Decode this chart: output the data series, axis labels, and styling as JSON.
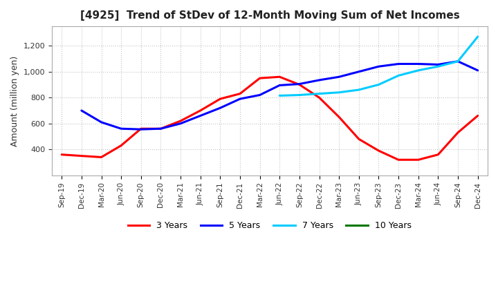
{
  "title": "[4925]  Trend of StDev of 12-Month Moving Sum of Net Incomes",
  "ylabel": "Amount (million yen)",
  "x_labels": [
    "Sep-19",
    "Dec-19",
    "Mar-20",
    "Jun-20",
    "Sep-20",
    "Dec-20",
    "Mar-21",
    "Jun-21",
    "Sep-21",
    "Dec-21",
    "Mar-22",
    "Jun-22",
    "Sep-22",
    "Dec-22",
    "Mar-23",
    "Jun-23",
    "Sep-23",
    "Dec-23",
    "Mar-24",
    "Jun-24",
    "Sep-24",
    "Dec-24"
  ],
  "series": {
    "3 Years": {
      "color": "#ff0000",
      "data_x": [
        0,
        1,
        2,
        3,
        4,
        5,
        6,
        7,
        8,
        9,
        10,
        11,
        12,
        13,
        14,
        15,
        16,
        17,
        18,
        19,
        20,
        21
      ],
      "data_y": [
        360,
        350,
        340,
        430,
        560,
        560,
        620,
        700,
        790,
        830,
        950,
        960,
        900,
        800,
        650,
        480,
        390,
        320,
        320,
        360,
        530,
        660
      ]
    },
    "5 Years": {
      "color": "#0000ff",
      "data_x": [
        1,
        2,
        3,
        4,
        5,
        6,
        7,
        8,
        9,
        10,
        11,
        12,
        13,
        14,
        15,
        16,
        17,
        18,
        19,
        20,
        21
      ],
      "data_y": [
        700,
        610,
        560,
        555,
        560,
        600,
        660,
        720,
        790,
        820,
        895,
        905,
        935,
        960,
        1000,
        1040,
        1060,
        1060,
        1055,
        1080,
        1010
      ]
    },
    "7 Years": {
      "color": "#00ccff",
      "data_x": [
        11,
        12,
        13,
        14,
        15,
        16,
        17,
        18,
        19,
        20,
        21
      ],
      "data_y": [
        815,
        820,
        830,
        840,
        860,
        900,
        970,
        1010,
        1040,
        1080,
        1270
      ]
    },
    "10 Years": {
      "color": "#007700",
      "data_x": [],
      "data_y": []
    }
  },
  "ylim": [
    200,
    1350
  ],
  "yticks": [
    400,
    600,
    800,
    1000,
    1200
  ],
  "background_color": "#ffffff",
  "grid_color": "#aaaaaa"
}
